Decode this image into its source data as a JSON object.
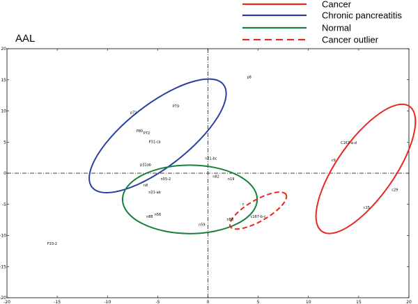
{
  "chart_data": {
    "type": "scatter",
    "title": "AAL",
    "xlim": [
      -20,
      20
    ],
    "ylim": [
      -20,
      20
    ],
    "xticks": [
      -20,
      -15,
      -10,
      -5,
      0,
      5,
      10,
      15,
      20
    ],
    "yticks": [
      -20,
      -15,
      -10,
      -5,
      0,
      5,
      10,
      15,
      20
    ],
    "reference_lines": {
      "x": 0,
      "y": 0,
      "style": "dash-dot"
    },
    "legend": {
      "placement": "top-right",
      "entries": [
        {
          "label": "Cancer",
          "color": "#e8281e",
          "style": "solid"
        },
        {
          "label": "Chronic pancreatitis",
          "color": "#2b3fa0",
          "style": "solid"
        },
        {
          "label": "Normal",
          "color": "#14803a",
          "style": "solid"
        },
        {
          "label": "Cancer outlier",
          "color": "#e8281e",
          "style": "dashed"
        }
      ]
    },
    "points": [
      {
        "label": "p8",
        "x": 4.1,
        "y": 15.5
      },
      {
        "label": "P79",
        "x": -3.2,
        "y": 10.8
      },
      {
        "label": "p71",
        "x": -7.4,
        "y": 9.8
      },
      {
        "label": "P80",
        "x": -6.8,
        "y": 6.8
      },
      {
        "label": "P72",
        "x": -6.1,
        "y": 6.5
      },
      {
        "label": "P31-ca",
        "x": -5.3,
        "y": 5.1
      },
      {
        "label": "p31ab",
        "x": -6.2,
        "y": 1.4
      },
      {
        "label": "n21-bc",
        "x": 0.3,
        "y": 2.4
      },
      {
        "label": "n82",
        "x": 0.8,
        "y": -0.5
      },
      {
        "label": "n55-2",
        "x": -4.2,
        "y": -0.9
      },
      {
        "label": "n8",
        "x": -6.2,
        "y": -1.9
      },
      {
        "label": "n19",
        "x": 2.3,
        "y": -0.9
      },
      {
        "label": "n21-ab",
        "x": -5.3,
        "y": -3.0
      },
      {
        "label": "n56",
        "x": -5.0,
        "y": -6.6
      },
      {
        "label": "n88",
        "x": -5.8,
        "y": -6.9
      },
      {
        "label": "n59",
        "x": -0.6,
        "y": -8.2
      },
      {
        "label": "n83",
        "x": 2.2,
        "y": -7.4
      },
      {
        "label": "c",
        "x": 3.5,
        "y": -4.9
      },
      {
        "label": "c167-b-c",
        "x": 5.0,
        "y": -6.9
      },
      {
        "label": "C167-a-d",
        "x": 14.0,
        "y": 4.9
      },
      {
        "label": "c9",
        "x": 12.5,
        "y": 2.1
      },
      {
        "label": "c29",
        "x": 18.6,
        "y": -2.6
      },
      {
        "label": "c15",
        "x": 15.8,
        "y": -5.5
      },
      {
        "label": "F33-2",
        "x": -15.5,
        "y": -11.3
      }
    ],
    "ellipses": [
      {
        "group": "Chronic pancreatitis",
        "color": "#2b3fa0",
        "style": "solid",
        "cx": -5.0,
        "cy": 6.0,
        "rx": 8.3,
        "ry": 5.0,
        "rotation_deg": -38
      },
      {
        "group": "Normal",
        "color": "#14803a",
        "style": "solid",
        "cx": -1.8,
        "cy": -4.2,
        "rx": 6.7,
        "ry": 5.5,
        "rotation_deg": 0
      },
      {
        "group": "Cancer outlier",
        "color": "#e8281e",
        "style": "dashed",
        "cx": 5.0,
        "cy": -6.0,
        "rx": 3.2,
        "ry": 1.7,
        "rotation_deg": -30
      },
      {
        "group": "Cancer",
        "color": "#e8281e",
        "style": "solid",
        "cx": 15.7,
        "cy": 0.7,
        "rx": 7.6,
        "ry": 4.6,
        "rotation_deg": -55
      }
    ]
  }
}
